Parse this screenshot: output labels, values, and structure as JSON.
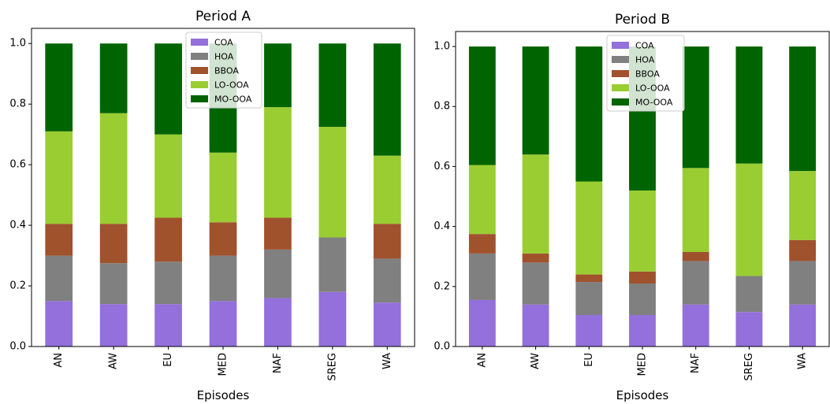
{
  "chart_data": [
    {
      "type": "bar",
      "stacked": true,
      "title": "Period A",
      "xlabel": "Episodes",
      "ylabel": "",
      "ylim": [
        0,
        1.05
      ],
      "yticks": [
        "0.0",
        "0.2",
        "0.4",
        "0.6",
        "0.8",
        "1.0"
      ],
      "legend_position": "top-center",
      "grid": false,
      "categories": [
        "AN",
        "AW",
        "EU",
        "MED",
        "NAF",
        "SREG",
        "WA"
      ],
      "series": [
        {
          "name": "COA",
          "color": "#9370DB",
          "values": [
            0.15,
            0.14,
            0.14,
            0.15,
            0.16,
            0.18,
            0.145
          ]
        },
        {
          "name": "HOA",
          "color": "#808080",
          "values": [
            0.15,
            0.135,
            0.14,
            0.15,
            0.16,
            0.18,
            0.145
          ]
        },
        {
          "name": "BBOA",
          "color": "#A0522D",
          "values": [
            0.105,
            0.13,
            0.145,
            0.11,
            0.105,
            0.0,
            0.115
          ]
        },
        {
          "name": "LO-OOA",
          "color": "#9ACD32",
          "values": [
            0.305,
            0.365,
            0.275,
            0.23,
            0.365,
            0.365,
            0.225
          ]
        },
        {
          "name": "MO-OOA",
          "color": "#006400",
          "values": [
            0.29,
            0.23,
            0.3,
            0.36,
            0.21,
            0.275,
            0.37
          ]
        }
      ]
    },
    {
      "type": "bar",
      "stacked": true,
      "title": "Period B",
      "xlabel": "Episodes",
      "ylabel": "",
      "ylim": [
        0,
        1.05
      ],
      "yticks": [
        "0.0",
        "0.2",
        "0.4",
        "0.6",
        "0.8",
        "1.0"
      ],
      "legend_position": "top-center",
      "grid": false,
      "categories": [
        "AN",
        "AW",
        "EU",
        "MED",
        "NAF",
        "SREG",
        "WA"
      ],
      "series": [
        {
          "name": "COA",
          "color": "#9370DB",
          "values": [
            0.155,
            0.14,
            0.105,
            0.105,
            0.14,
            0.115,
            0.14
          ]
        },
        {
          "name": "HOA",
          "color": "#808080",
          "values": [
            0.155,
            0.14,
            0.11,
            0.105,
            0.145,
            0.12,
            0.145
          ]
        },
        {
          "name": "BBOA",
          "color": "#A0522D",
          "values": [
            0.065,
            0.03,
            0.025,
            0.04,
            0.03,
            0.0,
            0.07
          ]
        },
        {
          "name": "LO-OOA",
          "color": "#9ACD32",
          "values": [
            0.23,
            0.33,
            0.31,
            0.27,
            0.28,
            0.375,
            0.23
          ]
        },
        {
          "name": "MO-OOA",
          "color": "#006400",
          "values": [
            0.395,
            0.36,
            0.45,
            0.48,
            0.405,
            0.39,
            0.415
          ]
        }
      ]
    }
  ]
}
